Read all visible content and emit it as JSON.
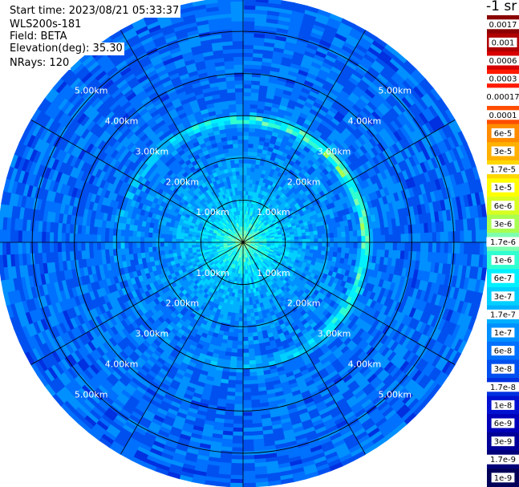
{
  "header": {
    "start_time": "Start time: 2023/08/21 05:33:37",
    "instrument": "WLS200s-181",
    "field": "Field: BETA",
    "elevation": "Elevation(deg): 35.30",
    "nrays": "NRays: 120"
  },
  "colorbar": {
    "unit_label": "-1 sr",
    "ticks": [
      "0.0017",
      "0.001",
      "0.0006",
      "0.0003",
      "0.00017",
      "0.0001",
      "6e-5",
      "3e-5",
      "1.7e-5",
      "1e-5",
      "6e-6",
      "3e-6",
      "1.7e-6",
      "1e-6",
      "6e-7",
      "3e-7",
      "1.7e-7",
      "1e-7",
      "6e-8",
      "3e-8",
      "1.7e-8",
      "1e-8",
      "6e-9",
      "3e-9",
      "1.7e-9",
      "1e-9"
    ],
    "colors": [
      "#8a0000",
      "#b00000",
      "#d80000",
      "#ff1a00",
      "#ffffff",
      "#ff4d00",
      "#ff8c00",
      "#ffb000",
      "#ffd700",
      "#ffff00",
      "#d9ff20",
      "#a8ff50",
      "#7dffb0",
      "#30ffd0",
      "#00f0ff",
      "#00d0ff",
      "#00b0ff",
      "#0090ff",
      "#0070ff",
      "#0050f0",
      "#0030e0",
      "#0010d0",
      "#0000b8",
      "#000098",
      "#000078",
      "#000058"
    ]
  },
  "chart_data": {
    "type": "heatmap",
    "projection": "polar-ppi",
    "field": "BETA",
    "rings_km": [
      1,
      2,
      3,
      4,
      5
    ],
    "spokes_deg": [
      0,
      30,
      60,
      90,
      120,
      150,
      180,
      210,
      240,
      270,
      300,
      330
    ],
    "range_labels": [
      "1.00km",
      "2.00km",
      "3.00km",
      "4.00km",
      "5.00km"
    ],
    "max_range_km": 5.8,
    "nrays": 120,
    "scale": "log",
    "value_range": [
      1e-09,
      0.0017
    ],
    "features": {
      "core_log10_beta": -5.8,
      "background_log10_beta": -7.2,
      "ring_radius_km": 2.9,
      "ring_log10_beta": -5.5
    }
  }
}
